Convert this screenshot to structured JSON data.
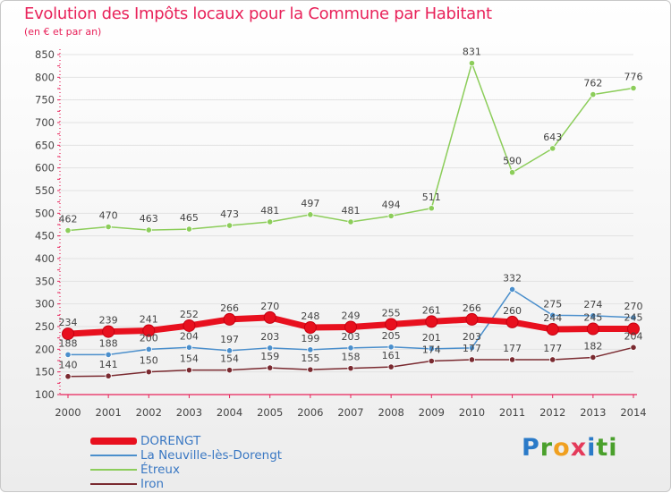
{
  "header": {
    "title": "Evolution des Impôts locaux pour la Commune par Habitant",
    "subtitle": "(en € et par an)"
  },
  "logo": {
    "text": "Proxiti",
    "parts": [
      "P",
      "r",
      "o",
      "x",
      "i",
      "ti"
    ]
  },
  "colors": {
    "title": "#e8225a",
    "axis": "#e8225a",
    "grid": "#e2e2e2",
    "label": "#444444",
    "legend_text": "#3a78c3"
  },
  "chart_data": {
    "type": "line",
    "title": "Evolution des Impôts locaux pour la Commune par Habitant",
    "subtitle": "(en € et par an)",
    "xlabel": "",
    "ylabel": "",
    "ylim": [
      100,
      850
    ],
    "yticks": [
      100,
      150,
      200,
      250,
      300,
      350,
      400,
      450,
      500,
      550,
      600,
      650,
      700,
      750,
      800,
      850
    ],
    "grid": true,
    "legend_position": "bottom-left",
    "x": [
      2000,
      2001,
      2002,
      2003,
      2004,
      2005,
      2006,
      2007,
      2008,
      2009,
      2010,
      2011,
      2012,
      2013,
      2014
    ],
    "series": [
      {
        "name": "DORENGT",
        "color": "#e8101e",
        "values": [
          234,
          239,
          241,
          252,
          266,
          270,
          248,
          249,
          255,
          261,
          266,
          260,
          244,
          245,
          245
        ],
        "labels": [
          "234",
          "239",
          "241",
          "252",
          "266",
          "270",
          "248",
          "249",
          "255",
          "261",
          "266",
          "260",
          "244",
          "245",
          "245"
        ],
        "label_pos": "above"
      },
      {
        "name": "La Neuville-lès-Dorengt",
        "color": "#4b8fcc",
        "values": [
          188,
          188,
          200,
          204,
          197,
          203,
          199,
          203,
          205,
          201,
          203,
          332,
          275,
          274,
          270
        ],
        "labels": [
          "188",
          "188",
          "200",
          "204",
          "197",
          "203",
          "199",
          "203",
          "205",
          "201",
          "203",
          "332",
          "275",
          "274",
          "270"
        ],
        "label_pos": "above"
      },
      {
        "name": "Étreux",
        "color": "#8ccd5a",
        "values": [
          462,
          470,
          463,
          465,
          473,
          481,
          497,
          481,
          494,
          511,
          831,
          590,
          643,
          762,
          776
        ],
        "labels": [
          "462",
          "470",
          "463",
          "465",
          "473",
          "481",
          "497",
          "481",
          "494",
          "511",
          "831",
          "590",
          "643",
          "762",
          "776"
        ],
        "label_pos": "above"
      },
      {
        "name": "Iron",
        "color": "#7a2a30",
        "values": [
          140,
          141,
          150,
          154,
          154,
          159,
          155,
          158,
          161,
          174,
          177,
          177,
          177,
          182,
          204
        ],
        "labels": [
          "140",
          "141",
          "150",
          "154",
          "154",
          "159",
          "155",
          "158",
          "161",
          "174",
          "177",
          "177",
          "177",
          "182",
          "204"
        ],
        "label_pos": "above"
      }
    ]
  }
}
